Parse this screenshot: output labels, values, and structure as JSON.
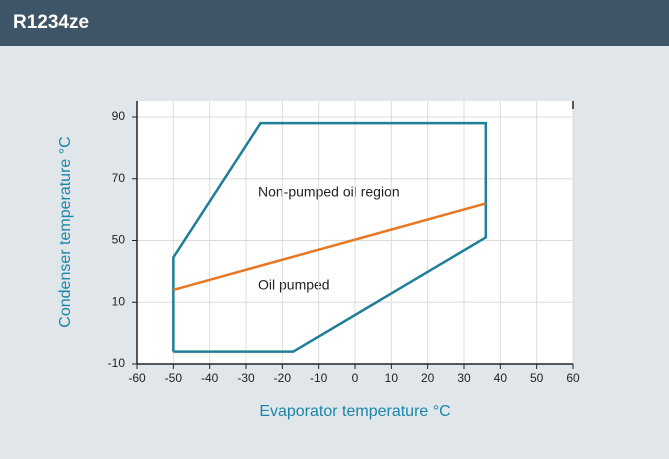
{
  "chart_data": {
    "type": "line",
    "title": "R1234ze",
    "xlabel": "Evaporator temperature °C",
    "ylabel": "Condenser temperature °C",
    "xlim": [
      -60,
      60
    ],
    "xticks": [
      -60,
      -50,
      -40,
      -30,
      -20,
      -10,
      0,
      10,
      20,
      30,
      40,
      50,
      60
    ],
    "ylim": [
      -10,
      90
    ],
    "yticks": [
      -10,
      10,
      50,
      70,
      90
    ],
    "grid": true,
    "series": [
      {
        "color": "#1f7f99",
        "x": [
          -50,
          -17,
          36,
          36,
          -26,
          -50,
          -50
        ],
        "values": [
          -6,
          -6,
          51,
          88,
          88,
          39,
          -6
        ]
      },
      {
        "color": "#e87722",
        "x": [
          -50,
          36
        ],
        "values": [
          18,
          62
        ]
      }
    ],
    "annotations": [
      "Non-pumped oil region",
      "Oil pumped"
    ]
  }
}
